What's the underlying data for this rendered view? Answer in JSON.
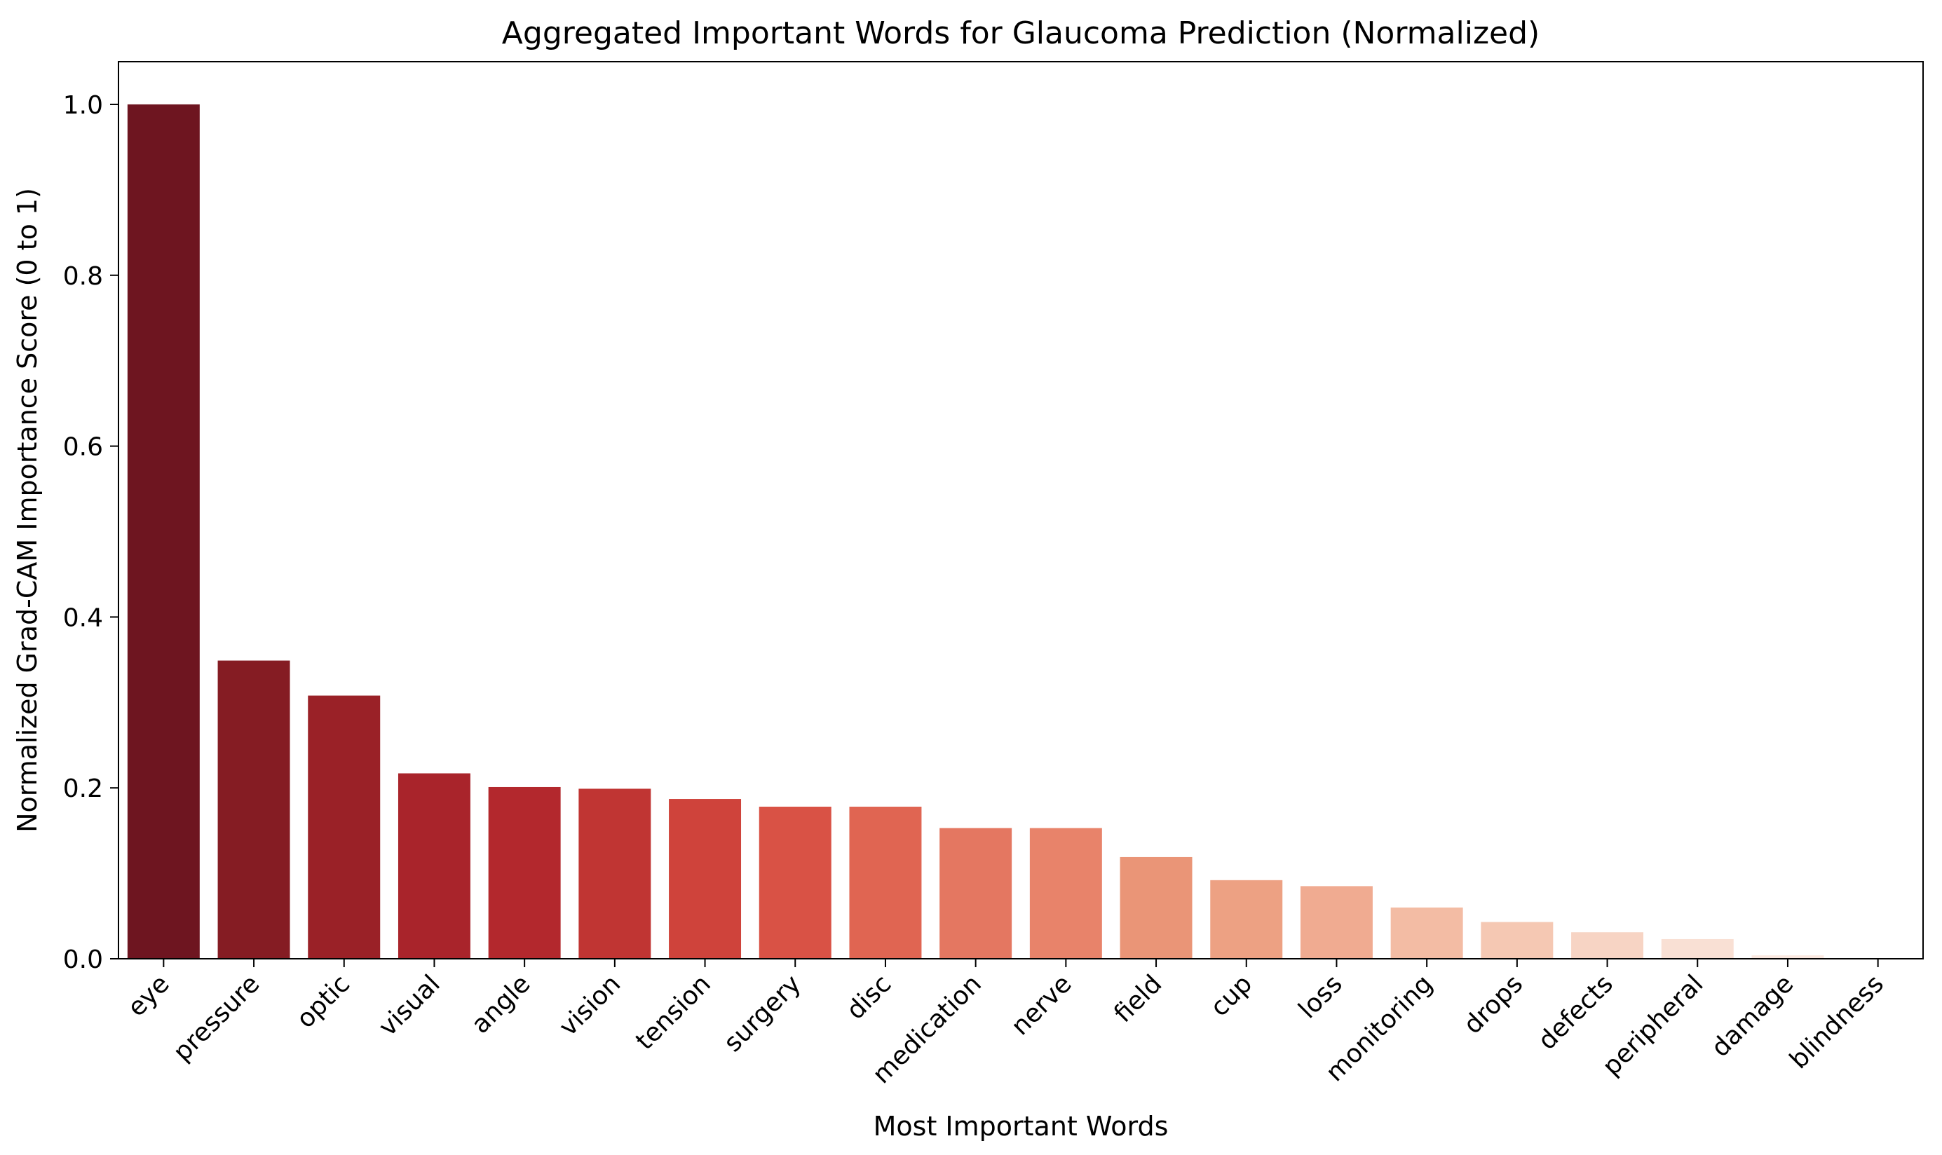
{
  "chart_data": {
    "type": "bar",
    "title": "Aggregated Important Words for Glaucoma Prediction (Normalized)",
    "xlabel": "Most Important Words",
    "ylabel": "Normalized Grad-CAM Importance Score (0 to 1)",
    "ylim": [
      0,
      1.05
    ],
    "yticks": [
      "0.0",
      "0.2",
      "0.4",
      "0.6",
      "0.8",
      "1.0"
    ],
    "grid": false,
    "categories": [
      "eye",
      "pressure",
      "optic",
      "visual",
      "angle",
      "vision",
      "tension",
      "surgery",
      "disc",
      "medication",
      "nerve",
      "field",
      "cup",
      "loss",
      "monitoring",
      "drops",
      "defects",
      "peripheral",
      "damage",
      "blindness"
    ],
    "values": [
      1.0,
      0.349,
      0.308,
      0.217,
      0.201,
      0.199,
      0.187,
      0.178,
      0.178,
      0.153,
      0.153,
      0.119,
      0.092,
      0.085,
      0.06,
      0.043,
      0.031,
      0.023,
      0.004,
      0.0
    ],
    "colors": [
      "#6e1520",
      "#851c23",
      "#9a2127",
      "#a9242b",
      "#b3282d",
      "#c03533",
      "#cf433b",
      "#d95245",
      "#e06552",
      "#e47761",
      "#e8836a",
      "#ea9577",
      "#eda183",
      "#f0ab91",
      "#f3bca4",
      "#f5c8b3",
      "#f7d4c4",
      "#f9e0d4",
      "#fbe9e1",
      "#fdf3ee"
    ]
  }
}
